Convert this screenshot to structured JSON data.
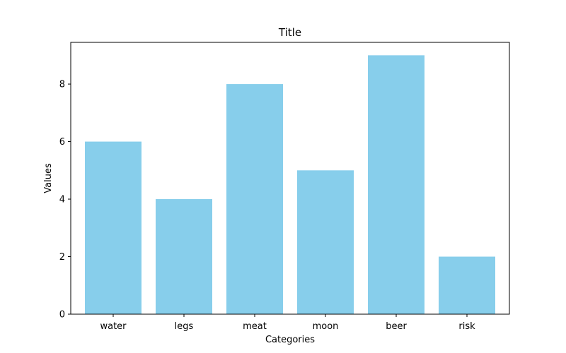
{
  "chart_data": {
    "type": "bar",
    "title": "Title",
    "xlabel": "Categories",
    "ylabel": "Values",
    "categories": [
      "water",
      "legs",
      "meat",
      "moon",
      "beer",
      "risk"
    ],
    "values": [
      6,
      4,
      8,
      5,
      9,
      2
    ],
    "ylim": [
      0,
      9.45
    ],
    "yticks": [
      0,
      2,
      4,
      6,
      8
    ],
    "grid": false,
    "bar_color": "#87CEEB",
    "axis_color": "#000000"
  }
}
